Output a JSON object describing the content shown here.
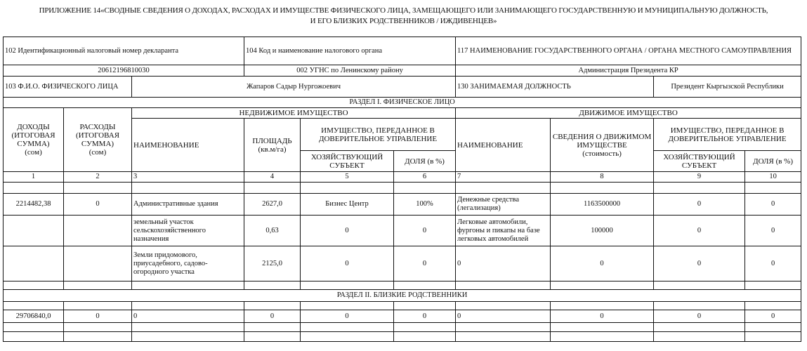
{
  "title": {
    "line1": "ПРИЛОЖЕНИЕ 14«СВОДНЫЕ СВЕДЕНИЯ О ДОХОДАХ, РАСХОДАХ И ИМУЩЕСТВЕ ФИЗИЧЕСКОГО ЛИЦА, ЗАМЕЩАЮЩЕГО ИЛИ ЗАНИМАЮЩЕГО ГОСУДАРСТВЕННУЮ И МУНИЦИПАЛЬНУЮ ДОЛЖНОСТЬ,",
    "line2": "И ЕГО БЛИЗКИХ РОДСТВЕННИКОВ / ИЖДИВЕНЦЕВ»"
  },
  "info": {
    "f102_label": "102  Идентификационный налоговый номер декларанта",
    "f104_label": "104  Код и наименование налогового органа",
    "f117_label": "117   НАИМЕНОВАНИЕ ГОСУДАРСТВЕННОГО ОРГАНА / ОРГАНА МЕСТНОГО САМОУПРАВЛЕНИЯ",
    "f102_value": "20612196810030",
    "f104_value": "002 УГНС по Ленинскому району",
    "f117_value": "Администрация Президента КР",
    "f103_label": "103  Ф.И.О. ФИЗИЧЕСКОГО ЛИЦА",
    "f103_value": "Жапаров Садыр Нургожоевич",
    "f130_label": "130  ЗАНИМАЕМАЯ ДОЛЖНОСТЬ",
    "f130_value": "Президент Кыргызской Республики"
  },
  "section1": "РАЗДЕЛ I. ФИЗИЧЕСКОЕ ЛИЦО",
  "section2": "РАЗДЕЛ II. БЛИЗКИЕ РОДСТВЕННИКИ",
  "headers": {
    "income": "ДОХОДЫ (ИТОГОВАЯ СУММА)",
    "income_unit": "(сом)",
    "expense": "РАСХОДЫ (ИТОГОВАЯ СУММА)",
    "expense_unit": "(сом)",
    "realty": "НЕДВИЖИМОЕ ИМУЩЕСТВО",
    "movable": "ДВИЖИМОЕ ИМУЩЕСТВО",
    "name": "НАИМЕНОВАНИЕ",
    "area": "ПЛОЩАДЬ",
    "area_unit": "(кв.м/га)",
    "trust": "ИМУЩЕСТВО, ПЕРЕДАННОЕ В ДОВЕРИТЕЛЬНОЕ УПРАВЛЕНИЕ",
    "entity": "ХОЗЯЙСТВУЮЩИЙ СУБЪЕКТ",
    "share": "ДОЛЯ (в %)",
    "movable_info": "СВЕДЕНИЯ О ДВИЖИМОМ ИМУЩЕСТВЕ",
    "movable_unit": "(стоимость)"
  },
  "col_numbers": [
    "1",
    "2",
    "3",
    "4",
    "5",
    "6",
    "7",
    "8",
    "9",
    "10"
  ],
  "section1_rows": [
    [
      "",
      "",
      "",
      "",
      "",
      "",
      "",
      "",
      "",
      ""
    ],
    [
      "2214482,38",
      "0",
      "Административные здания",
      "2627,0",
      "Бизнес Центр",
      "100%",
      "Денежные средства (легализация)",
      "1163500000",
      "0",
      "0"
    ],
    [
      "",
      "",
      "земельный участок сельскохозяйственного назначения",
      "0,63",
      "0",
      "0",
      "Легковые автомобили, фургоны и пикапы на базе легковых автомобилей",
      "100000",
      "0",
      "0"
    ],
    [
      "",
      "",
      "Земли придомового, приусадебного, садово-огородного участка",
      "2125,0",
      "0",
      "0",
      "0",
      "0",
      "0",
      "0"
    ],
    [
      "",
      "",
      "",
      "",
      "",
      "",
      "",
      "",
      "",
      ""
    ]
  ],
  "section2_rows": [
    [
      "",
      "",
      "",
      "",
      "",
      "",
      "",
      "",
      "",
      ""
    ],
    [
      "29706840,0",
      "0",
      "0",
      "0",
      "0",
      "0",
      "0",
      "0",
      "0",
      "0"
    ],
    [
      "",
      "",
      "",
      "",
      "",
      "",
      "",
      "",
      "",
      ""
    ],
    [
      "",
      "",
      "",
      "",
      "",
      "",
      "",
      "",
      "",
      ""
    ]
  ]
}
